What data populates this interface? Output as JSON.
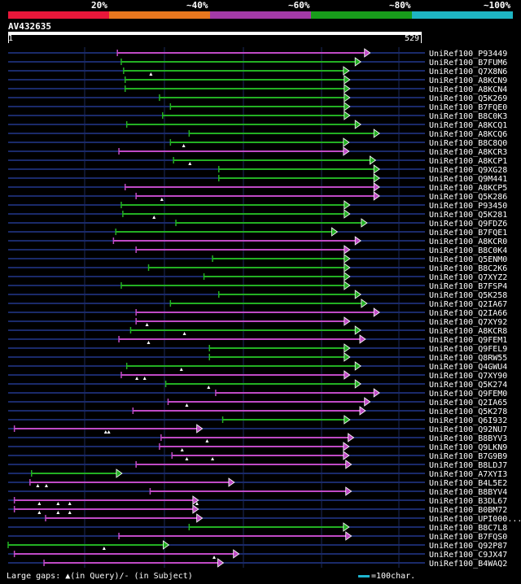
{
  "scale": {
    "labels": [
      "20%",
      "~40%",
      "~60%",
      "~80%",
      "~100%"
    ],
    "colors": [
      "#e8173a",
      "#e8771e",
      "#a33aa7",
      "#189d1b",
      "#1eb5c3"
    ]
  },
  "query": {
    "name": "AV432635",
    "start": "1",
    "end": "529",
    "length": 529
  },
  "colors": {
    "magenta": "#c04ac6",
    "green": "#23b023",
    "marker": "#ffffff",
    "grid": "#1a2a6a"
  },
  "hits": [
    {
      "label": "UniRef100_P93449",
      "start": 140,
      "end": 464,
      "color": "magenta",
      "marks": []
    },
    {
      "label": "UniRef100_B7FUM6",
      "start": 145,
      "end": 452,
      "color": "green",
      "marks": []
    },
    {
      "label": "UniRef100_Q7X8N6",
      "start": 148,
      "end": 437,
      "color": "green",
      "marks": [
        183
      ]
    },
    {
      "label": "UniRef100_A8KCN9",
      "start": 150,
      "end": 438,
      "color": "green",
      "marks": []
    },
    {
      "label": "UniRef100_A8KCN4",
      "start": 150,
      "end": 438,
      "color": "green",
      "marks": []
    },
    {
      "label": "UniRef100_Q5K269",
      "start": 194,
      "end": 438,
      "color": "green",
      "marks": []
    },
    {
      "label": "UniRef100_B7FQE0",
      "start": 208,
      "end": 438,
      "color": "green",
      "marks": []
    },
    {
      "label": "UniRef100_B8C0K3",
      "start": 198,
      "end": 438,
      "color": "green",
      "marks": []
    },
    {
      "label": "UniRef100_A8KCQ1",
      "start": 152,
      "end": 452,
      "color": "green",
      "marks": []
    },
    {
      "label": "UniRef100_A8KCQ6",
      "start": 232,
      "end": 476,
      "color": "green",
      "marks": []
    },
    {
      "label": "UniRef100_B8C8Q0",
      "start": 208,
      "end": 437,
      "color": "green",
      "marks": [
        225
      ]
    },
    {
      "label": "UniRef100_A8KCR3",
      "start": 142,
      "end": 437,
      "color": "magenta",
      "marks": []
    },
    {
      "label": "UniRef100_A8KCP1",
      "start": 212,
      "end": 471,
      "color": "green",
      "marks": [
        233
      ]
    },
    {
      "label": "UniRef100_Q9XG28",
      "start": 270,
      "end": 476,
      "color": "green",
      "marks": []
    },
    {
      "label": "UniRef100_Q9M441",
      "start": 270,
      "end": 476,
      "color": "green",
      "marks": []
    },
    {
      "label": "UniRef100_A8KCP5",
      "start": 150,
      "end": 476,
      "color": "magenta",
      "marks": []
    },
    {
      "label": "UniRef100_Q5K286",
      "start": 164,
      "end": 476,
      "color": "magenta",
      "marks": [
        197
      ]
    },
    {
      "label": "UniRef100_P93450",
      "start": 145,
      "end": 438,
      "color": "green",
      "marks": []
    },
    {
      "label": "UniRef100_Q5K281",
      "start": 147,
      "end": 438,
      "color": "green",
      "marks": [
        187
      ]
    },
    {
      "label": "UniRef100_Q9FDZ6",
      "start": 215,
      "end": 460,
      "color": "green",
      "marks": []
    },
    {
      "label": "UniRef100_B7FQE1",
      "start": 138,
      "end": 422,
      "color": "green",
      "marks": []
    },
    {
      "label": "UniRef100_A8KCR0",
      "start": 135,
      "end": 452,
      "color": "magenta",
      "marks": []
    },
    {
      "label": "UniRef100_B8C0K4",
      "start": 164,
      "end": 438,
      "color": "magenta",
      "marks": []
    },
    {
      "label": "UniRef100_Q5ENM0",
      "start": 262,
      "end": 438,
      "color": "green",
      "marks": []
    },
    {
      "label": "UniRef100_B8C2K6",
      "start": 180,
      "end": 438,
      "color": "green",
      "marks": []
    },
    {
      "label": "UniRef100_Q7XYZ2",
      "start": 251,
      "end": 438,
      "color": "green",
      "marks": []
    },
    {
      "label": "UniRef100_B7FSP4",
      "start": 145,
      "end": 438,
      "color": "green",
      "marks": []
    },
    {
      "label": "UniRef100_Q5K258",
      "start": 270,
      "end": 452,
      "color": "green",
      "marks": []
    },
    {
      "label": "UniRef100_Q2IA67",
      "start": 208,
      "end": 460,
      "color": "green",
      "marks": []
    },
    {
      "label": "UniRef100_Q2IA66",
      "start": 164,
      "end": 476,
      "color": "magenta",
      "marks": []
    },
    {
      "label": "UniRef100_Q7XY92",
      "start": 164,
      "end": 438,
      "color": "magenta",
      "marks": [
        178
      ]
    },
    {
      "label": "UniRef100_A8KCR8",
      "start": 157,
      "end": 452,
      "color": "green",
      "marks": [
        226
      ]
    },
    {
      "label": "UniRef100_Q9FEM1",
      "start": 142,
      "end": 458,
      "color": "magenta",
      "marks": [
        180
      ]
    },
    {
      "label": "UniRef100_Q9FEL9",
      "start": 258,
      "end": 438,
      "color": "green",
      "marks": []
    },
    {
      "label": "UniRef100_Q8RW55",
      "start": 258,
      "end": 438,
      "color": "green",
      "marks": []
    },
    {
      "label": "UniRef100_Q4GWU4",
      "start": 152,
      "end": 452,
      "color": "green",
      "marks": [
        222
      ]
    },
    {
      "label": "UniRef100_Q7XY90",
      "start": 145,
      "end": 438,
      "color": "magenta",
      "marks": [
        165,
        175
      ]
    },
    {
      "label": "UniRef100_Q5K274",
      "start": 202,
      "end": 452,
      "color": "green",
      "marks": [
        257
      ]
    },
    {
      "label": "UniRef100_Q9FEM0",
      "start": 266,
      "end": 476,
      "color": "magenta",
      "marks": []
    },
    {
      "label": "UniRef100_Q2IA65",
      "start": 205,
      "end": 464,
      "color": "magenta",
      "marks": [
        229
      ]
    },
    {
      "label": "UniRef100_Q5K278",
      "start": 160,
      "end": 458,
      "color": "magenta",
      "marks": []
    },
    {
      "label": "UniRef100_Q6I932",
      "start": 275,
      "end": 438,
      "color": "green",
      "marks": []
    },
    {
      "label": "UniRef100_Q92NU7",
      "start": 8,
      "end": 249,
      "color": "magenta",
      "marks": [
        125,
        129
      ]
    },
    {
      "label": "UniRef100_B8BYV3",
      "start": 196,
      "end": 443,
      "color": "magenta",
      "marks": [
        255
      ]
    },
    {
      "label": "UniRef100_Q9LKN9",
      "start": 194,
      "end": 437,
      "color": "magenta",
      "marks": [
        223
      ]
    },
    {
      "label": "UniRef100_B7G9B9",
      "start": 210,
      "end": 437,
      "color": "magenta",
      "marks": [
        229,
        262
      ]
    },
    {
      "label": "UniRef100_B8LDJ7",
      "start": 164,
      "end": 440,
      "color": "magenta",
      "marks": []
    },
    {
      "label": "UniRef100_A7XYI3",
      "start": 30,
      "end": 146,
      "color": "green",
      "marks": []
    },
    {
      "label": "UniRef100_B4L5E2",
      "start": 28,
      "end": 290,
      "color": "magenta",
      "marks": [
        38,
        49
      ]
    },
    {
      "label": "UniRef100_B8BYV4",
      "start": 182,
      "end": 440,
      "color": "magenta",
      "marks": []
    },
    {
      "label": "UniRef100_B3DL67",
      "start": 8,
      "end": 244,
      "color": "magenta",
      "marks": [
        40,
        64,
        79,
        242
      ]
    },
    {
      "label": "UniRef100_B0BM72",
      "start": 8,
      "end": 244,
      "color": "magenta",
      "marks": [
        40,
        64,
        79
      ]
    },
    {
      "label": "UniRef100_UPI000...",
      "start": 48,
      "end": 249,
      "color": "magenta",
      "marks": []
    },
    {
      "label": "UniRef100_B8C7L8",
      "start": 232,
      "end": 437,
      "color": "green",
      "marks": []
    },
    {
      "label": "UniRef100_B7FQS0",
      "start": 142,
      "end": 440,
      "color": "magenta",
      "marks": []
    },
    {
      "label": "UniRef100_Q92P87",
      "start": 0,
      "end": 206,
      "color": "green",
      "marks": [
        123
      ]
    },
    {
      "label": "UniRef100_C9JX47",
      "start": 8,
      "end": 296,
      "color": "magenta",
      "marks": [
        264
      ]
    },
    {
      "label": "UniRef100_B4WAQ2",
      "start": 46,
      "end": 276,
      "color": "magenta",
      "marks": []
    }
  ],
  "legend": {
    "large_gaps": "Large gaps: ▲(in Query)/- (in Subject)",
    "scale_note": "=100char."
  }
}
